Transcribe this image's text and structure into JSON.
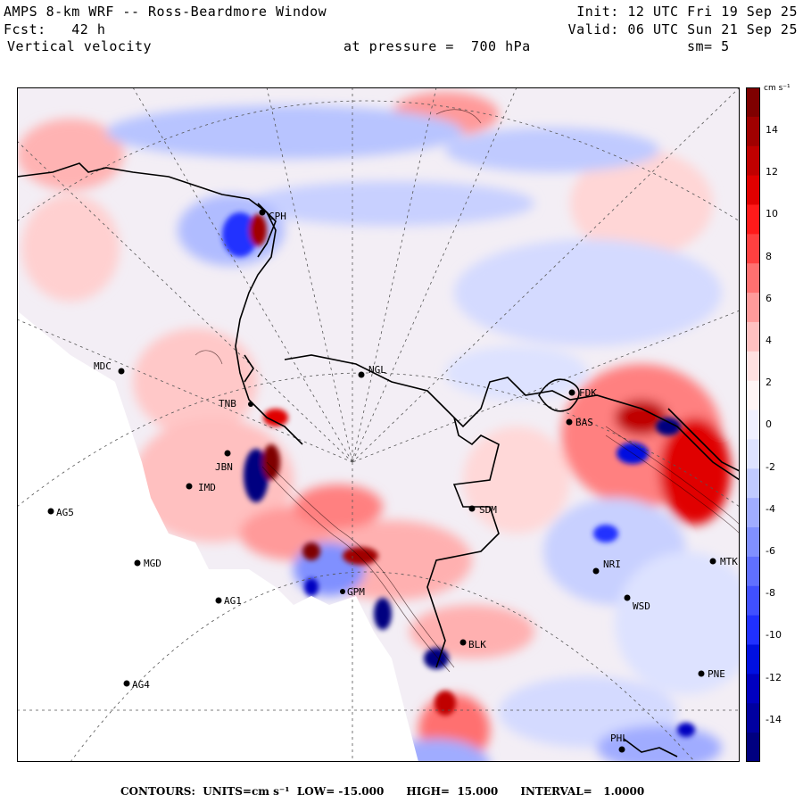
{
  "header": {
    "line1_left": "AMPS 8-km WRF -- Ross-Beardmore Window",
    "line1_right": "Init: 12 UTC Fri 19 Sep 25",
    "line2_left": "Fcst:   42 h",
    "line2_right": "Valid: 06 UTC Sun 21 Sep 25",
    "line3_left": "Vertical velocity",
    "line3_mid": "at pressure =  700 hPa",
    "line3_right": "sm= 5"
  },
  "colorbar": {
    "units": "cm s⁻¹",
    "ticks": [
      "14",
      "12",
      "10",
      "8",
      "6",
      "4",
      "2",
      "0",
      "-2",
      "-4",
      "-6",
      "-8",
      "-10",
      "-12",
      "-14"
    ],
    "colors_top_to_bottom": [
      "#7f0000",
      "#a00000",
      "#c00000",
      "#e00000",
      "#ff1a1a",
      "#ff4040",
      "#ff7070",
      "#ff9a9a",
      "#ffc0c0",
      "#ffe0e0",
      "#fff5f5",
      "#f0f0ff",
      "#dde2ff",
      "#c0caff",
      "#a0acff",
      "#8090ff",
      "#6070ff",
      "#4050ff",
      "#2030ff",
      "#0010e0",
      "#0000c0",
      "#0000a0",
      "#000080"
    ]
  },
  "stations": [
    {
      "code": "CPH"
    },
    {
      "code": "MDC"
    },
    {
      "code": "NGL"
    },
    {
      "code": "FDK"
    },
    {
      "code": "BAS"
    },
    {
      "code": "TNB"
    },
    {
      "code": "JBN"
    },
    {
      "code": "IMD"
    },
    {
      "code": "AG5"
    },
    {
      "code": "SDM"
    },
    {
      "code": "MGD"
    },
    {
      "code": "NRI"
    },
    {
      "code": "MTK"
    },
    {
      "code": "AG1"
    },
    {
      "code": "GPM"
    },
    {
      "code": "WSD"
    },
    {
      "code": "BLK"
    },
    {
      "code": "AG4"
    },
    {
      "code": "PNE"
    },
    {
      "code": "PHL"
    }
  ],
  "footer": {
    "label": "CONTOURS:  UNITS=cm s⁻¹  LOW= -15.000      HIGH=  15.000      INTERVAL=   1.0000"
  }
}
